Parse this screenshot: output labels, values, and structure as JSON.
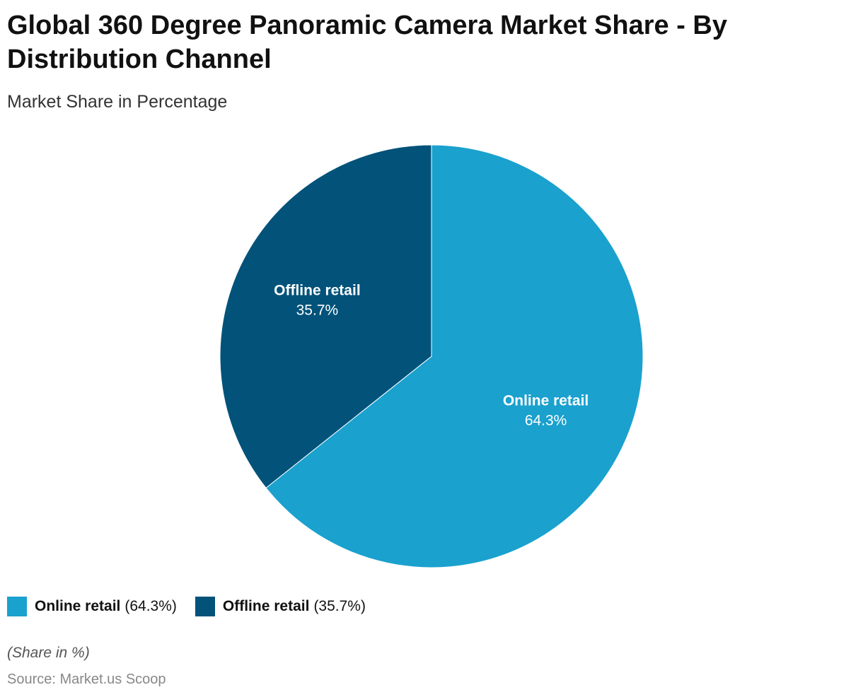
{
  "chart_data": {
    "type": "pie",
    "title": "Global 360 Degree Panoramic Camera Market Share - By Distribution Channel",
    "subtitle": "Market Share in Percentage",
    "categories": [
      "Online retail",
      "Offline retail"
    ],
    "values": [
      64.3,
      35.7
    ],
    "value_labels": [
      "64.3%",
      "35.7%"
    ],
    "legend_labels": [
      "(64.3%)",
      "(35.7%)"
    ],
    "colors": [
      "#1aa1ce",
      "#02527a"
    ],
    "note": "(Share in %)",
    "source": "Source: Market.us Scoop"
  }
}
